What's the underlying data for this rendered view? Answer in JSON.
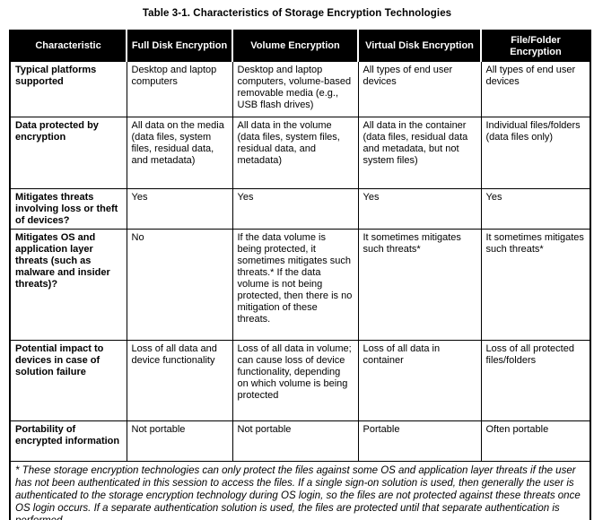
{
  "page": {
    "title": "Table 3-1.  Characteristics of Storage Encryption Technologies"
  },
  "colors": {
    "header_bg": "#000000",
    "header_text": "#ffffff",
    "border": "#000000",
    "body_text": "#000000",
    "page_bg": "#ffffff"
  },
  "table": {
    "columns": [
      "Characteristic",
      "Full Disk Encryption",
      "Volume Encryption",
      "Virtual Disk Encryption",
      "File/Folder Encryption"
    ],
    "rows": [
      {
        "label": "Typical platforms supported",
        "cells": [
          "Desktop and laptop computers",
          "Desktop and laptop computers, volume-based removable media (e.g., USB flash drives)",
          "All types of end user devices",
          "All types of end user devices"
        ]
      },
      {
        "label": "Data protected by encryption",
        "cells": [
          "All data on the media (data files, system files, residual data, and metadata)",
          "All data in the volume (data files, system files, residual data, and metadata)",
          "All data in the container (data files, residual data and metadata, but not system files)",
          "Individual files/folders (data files only)"
        ]
      },
      {
        "label": "Mitigates threats involving loss or theft of devices?",
        "cells": [
          "Yes",
          "Yes",
          "Yes",
          "Yes"
        ]
      },
      {
        "label": "Mitigates OS and application layer threats (such as malware and insider threats)?",
        "cells": [
          "No",
          "If the data volume is being protected, it sometimes mitigates such threats.* If the data volume is not being protected, then there is no mitigation of these threats.",
          "It sometimes mitigates such threats*",
          "It sometimes mitigates such threats*"
        ]
      },
      {
        "label": "Potential impact to devices in case of solution failure",
        "cells": [
          "Loss of all data and device functionality",
          "Loss of all data in volume; can cause loss of device functionality, depending on which volume is being protected",
          "Loss of all data in container",
          "Loss of all protected files/folders"
        ]
      },
      {
        "label": "Portability of encrypted information",
        "cells": [
          "Not portable",
          "Not portable",
          "Portable",
          "Often portable"
        ]
      }
    ],
    "footnote": "* These storage encryption technologies can only protect the files against some OS and application layer threats if the user has not been authenticated in this session to access the files.  If a single sign-on solution is used, then generally the user is authenticated to the storage encryption technology during OS login, so the files are not protected against these threats once OS login occurs.  If a separate authentication solution is used, the files are protected until that separate authentication is performed."
  }
}
